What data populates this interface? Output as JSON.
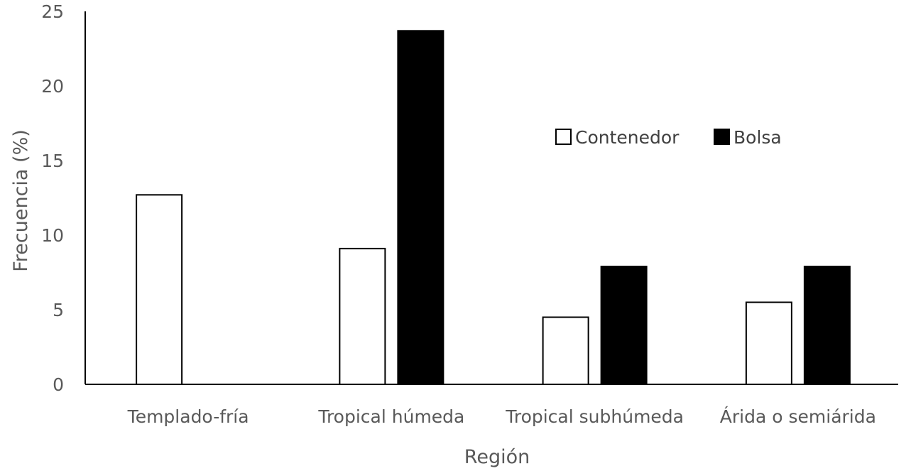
{
  "chart_data": {
    "type": "bar",
    "categories": [
      "Templado-fría",
      "Tropical húmeda",
      "Tropical subhúmeda",
      "Árida o semiárida"
    ],
    "series": [
      {
        "name": "Contenedor",
        "values": [
          12.7,
          9.1,
          4.5,
          5.5
        ],
        "color": "#ffffff"
      },
      {
        "name": "Bolsa",
        "values": [
          0,
          23.7,
          7.9,
          7.9
        ],
        "color": "#000000"
      }
    ],
    "yticks": [
      "0",
      "5",
      "10",
      "15",
      "20",
      "25"
    ],
    "ylim": [
      0,
      25
    ],
    "ylabel": "Frecuencia (%)",
    "xlabel": "Región",
    "grid": false,
    "legend_position": "center-right, inside plot"
  }
}
